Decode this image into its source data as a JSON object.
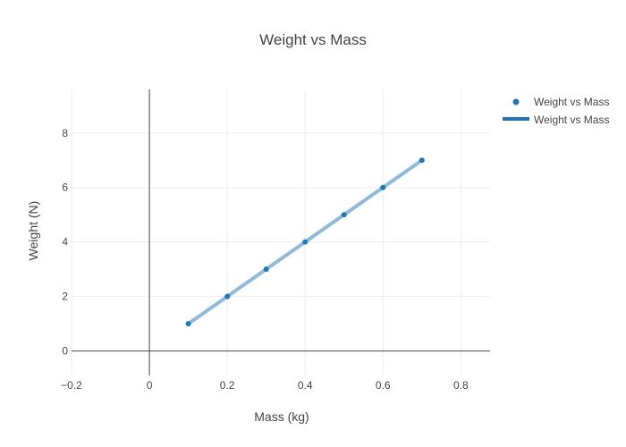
{
  "chart_data": {
    "type": "scatter",
    "title": "Weight vs Mass",
    "xlabel": "Mass (kg)",
    "ylabel": "Weight (N)",
    "xlim": [
      -0.2,
      0.875
    ],
    "ylim": [
      -0.9,
      9.6
    ],
    "x_ticks": [
      "−0.2",
      "0",
      "0.2",
      "0.4",
      "0.6",
      "0.8"
    ],
    "x_tick_values": [
      -0.2,
      0,
      0.2,
      0.4,
      0.6,
      0.8
    ],
    "y_ticks": [
      "0",
      "2",
      "4",
      "6",
      "8"
    ],
    "y_tick_values": [
      0,
      2,
      4,
      6,
      8
    ],
    "grid": true,
    "legend_position": "top-right",
    "series": [
      {
        "name": "Weight vs Mass",
        "mode": "markers",
        "color": "#1f77b4",
        "x": [
          0.1,
          0.2,
          0.3,
          0.4,
          0.5,
          0.6,
          0.7
        ],
        "y": [
          1,
          2,
          3,
          4,
          5,
          6,
          7
        ]
      },
      {
        "name": "Weight vs Mass",
        "mode": "lines",
        "color": "#1f77b4",
        "x": [
          0.1,
          0.7
        ],
        "y": [
          1,
          7
        ]
      }
    ]
  }
}
